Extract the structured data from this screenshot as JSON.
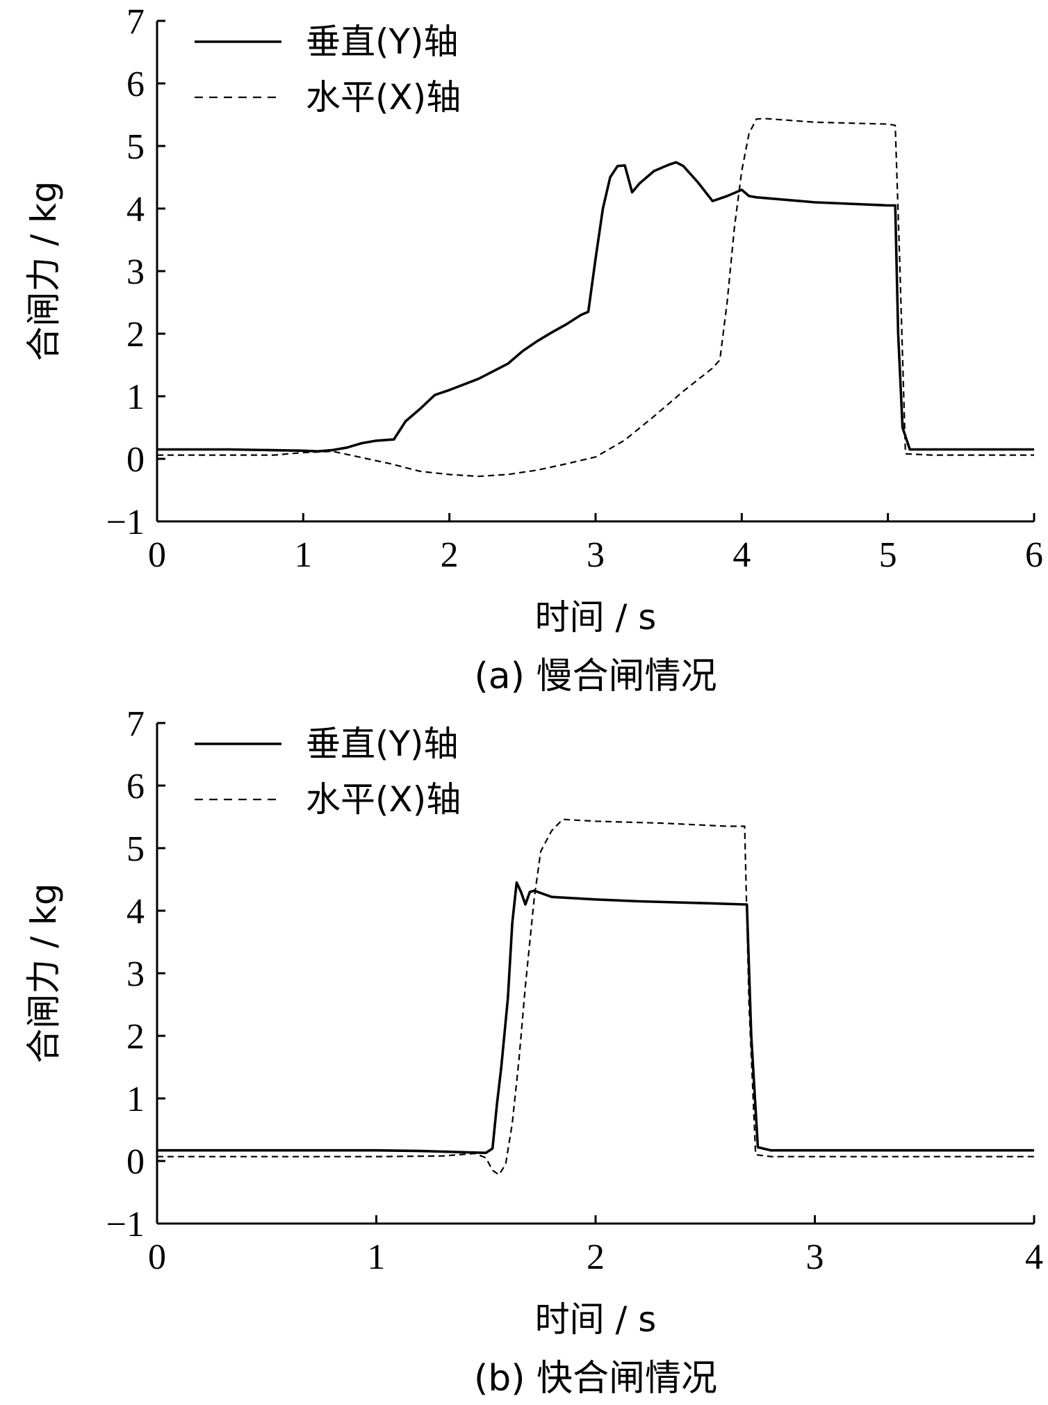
{
  "chart_data": [
    {
      "type": "line",
      "caption": "(a) 慢合闸情况",
      "xlabel": "时间 / s",
      "ylabel": "合闸力 / kg",
      "xlim": [
        0,
        6
      ],
      "ylim": [
        -1,
        7
      ],
      "xticks": [
        "0",
        "1",
        "2",
        "3",
        "4",
        "5",
        "6"
      ],
      "yticks": [
        "−1",
        "0",
        "1",
        "2",
        "3",
        "4",
        "5",
        "6",
        "7"
      ],
      "legend_position": "top-left",
      "series": [
        {
          "name": "垂直(Y)轴",
          "style": "solid",
          "x": [
            0,
            0.5,
            1.0,
            1.1,
            1.2,
            1.3,
            1.4,
            1.5,
            1.62,
            1.7,
            1.8,
            1.9,
            2.0,
            2.2,
            2.4,
            2.5,
            2.6,
            2.7,
            2.8,
            2.9,
            2.95,
            3.0,
            3.05,
            3.1,
            3.15,
            3.2,
            3.25,
            3.3,
            3.4,
            3.5,
            3.55,
            3.6,
            3.7,
            3.8,
            3.9,
            4.0,
            4.05,
            4.1,
            4.5,
            5.0,
            5.05,
            5.07,
            5.1,
            5.15,
            5.5,
            6.0
          ],
          "y": [
            0.15,
            0.15,
            0.13,
            0.12,
            0.14,
            0.18,
            0.25,
            0.29,
            0.31,
            0.6,
            0.8,
            1.02,
            1.1,
            1.28,
            1.52,
            1.72,
            1.88,
            2.02,
            2.15,
            2.3,
            2.35,
            3.2,
            4.0,
            4.5,
            4.68,
            4.69,
            4.26,
            4.4,
            4.6,
            4.7,
            4.74,
            4.68,
            4.42,
            4.12,
            4.2,
            4.3,
            4.2,
            4.18,
            4.1,
            4.05,
            4.05,
            2.0,
            0.5,
            0.15,
            0.15,
            0.15
          ]
        },
        {
          "name": "水平(X)轴",
          "style": "dashed",
          "x": [
            0,
            0.8,
            1.0,
            1.2,
            1.4,
            1.6,
            1.8,
            2.0,
            2.2,
            2.4,
            2.6,
            2.8,
            3.0,
            3.2,
            3.4,
            3.6,
            3.8,
            3.85,
            3.9,
            3.95,
            4.0,
            4.05,
            4.1,
            4.15,
            4.5,
            5.0,
            5.05,
            5.08,
            5.12,
            5.3,
            6.0
          ],
          "y": [
            0.06,
            0.06,
            0.1,
            0.12,
            0.02,
            -0.08,
            -0.2,
            -0.25,
            -0.28,
            -0.25,
            -0.18,
            -0.08,
            0.03,
            0.3,
            0.68,
            1.08,
            1.45,
            1.58,
            2.5,
            3.7,
            4.6,
            5.2,
            5.43,
            5.44,
            5.38,
            5.35,
            5.33,
            3.2,
            0.08,
            0.06,
            0.06
          ]
        }
      ]
    },
    {
      "type": "line",
      "caption": "(b) 快合闸情况",
      "xlabel": "时间 / s",
      "ylabel": "合闸力 / kg",
      "xlim": [
        0,
        4
      ],
      "ylim": [
        -1,
        7
      ],
      "xticks": [
        "0",
        "1",
        "2",
        "3",
        "4"
      ],
      "yticks": [
        "−1",
        "0",
        "1",
        "2",
        "3",
        "4",
        "5",
        "6",
        "7"
      ],
      "legend_position": "top-left",
      "series": [
        {
          "name": "垂直(Y)轴",
          "style": "solid",
          "x": [
            0,
            0.5,
            1.0,
            1.2,
            1.4,
            1.5,
            1.53,
            1.55,
            1.57,
            1.6,
            1.62,
            1.64,
            1.66,
            1.68,
            1.7,
            1.72,
            1.8,
            2.0,
            2.2,
            2.5,
            2.68,
            2.69,
            2.71,
            2.74,
            2.8,
            3.5,
            4.0
          ],
          "y": [
            0.17,
            0.17,
            0.17,
            0.16,
            0.14,
            0.13,
            0.2,
            0.9,
            1.5,
            2.6,
            3.8,
            4.45,
            4.3,
            4.1,
            4.3,
            4.32,
            4.22,
            4.18,
            4.15,
            4.12,
            4.1,
            4.1,
            2.0,
            0.22,
            0.17,
            0.17,
            0.17
          ]
        },
        {
          "name": "水平(X)轴",
          "style": "dashed",
          "x": [
            0,
            0.5,
            1.0,
            1.3,
            1.45,
            1.5,
            1.53,
            1.56,
            1.59,
            1.62,
            1.65,
            1.68,
            1.72,
            1.75,
            1.8,
            1.85,
            2.0,
            2.3,
            2.6,
            2.68,
            2.7,
            2.73,
            2.8,
            3.5,
            4.0
          ],
          "y": [
            0.07,
            0.07,
            0.07,
            0.08,
            0.12,
            0.05,
            -0.15,
            -0.22,
            -0.05,
            0.6,
            1.6,
            2.8,
            4.2,
            4.95,
            5.28,
            5.46,
            5.43,
            5.4,
            5.35,
            5.35,
            2.5,
            0.1,
            0.07,
            0.07,
            0.07
          ]
        }
      ]
    }
  ]
}
